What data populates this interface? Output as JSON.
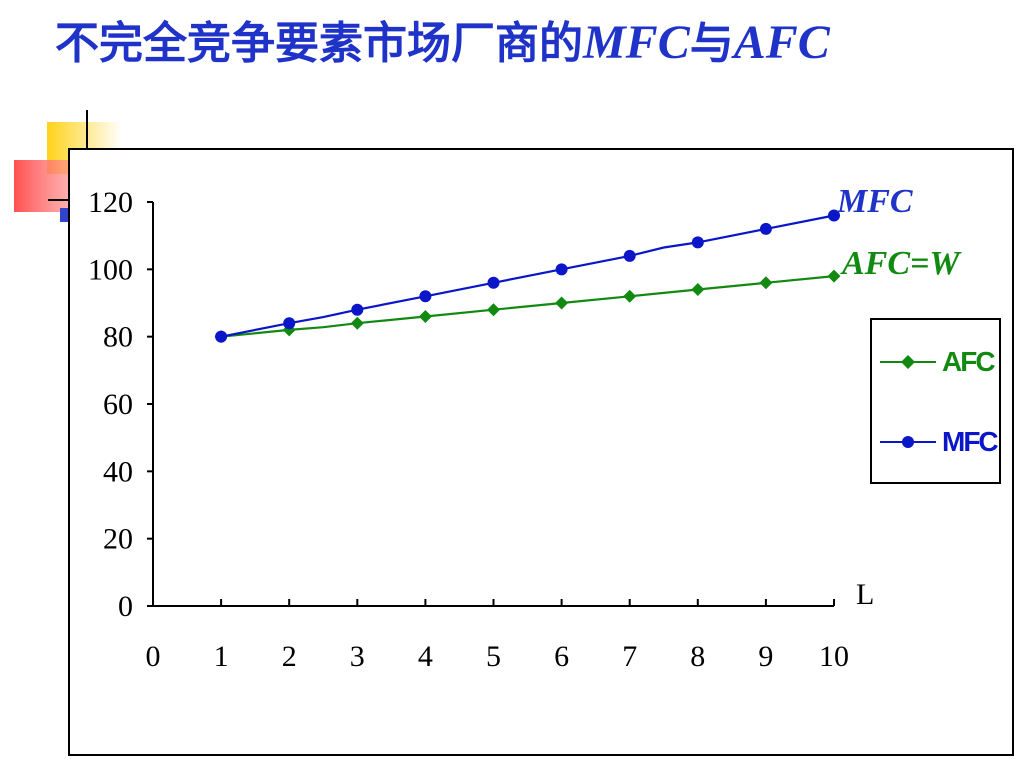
{
  "slide": {
    "title_cn": "不完全竞争要素市场厂商的",
    "title_mfc": "MFC",
    "title_mid": "与",
    "title_afc": "AFC"
  },
  "chart_data": {
    "type": "line",
    "x": [
      1,
      2,
      2.5,
      3,
      4,
      5,
      6,
      7,
      7.5,
      8,
      9,
      10
    ],
    "x_ticks": [
      "0",
      "1",
      "2",
      "3",
      "4",
      "5",
      "6",
      "7",
      "8",
      "9",
      "10"
    ],
    "y_ticks": [
      "0",
      "20",
      "40",
      "60",
      "80",
      "100",
      "120"
    ],
    "xlim": [
      0,
      10
    ],
    "ylim": [
      0,
      120
    ],
    "xlabel": "L",
    "ylabel": "",
    "grid": false,
    "legend_position": "right",
    "series": [
      {
        "name": "AFC",
        "color": "#128a12",
        "marker": "diamond",
        "x": [
          1,
          2,
          2.5,
          3,
          4,
          5,
          6,
          7,
          8,
          9,
          10
        ],
        "values": [
          80,
          82,
          82.8,
          84,
          86,
          88,
          90,
          92,
          94,
          96,
          98
        ],
        "marker_x": [
          1,
          2,
          3,
          4,
          5,
          6,
          7,
          8,
          9,
          10
        ]
      },
      {
        "name": "MFC",
        "color": "#0a16c8",
        "marker": "circle",
        "x": [
          1,
          2,
          2.5,
          3,
          4,
          5,
          6,
          7,
          7.5,
          8,
          9,
          10
        ],
        "values": [
          80,
          84,
          85.8,
          88,
          92,
          96,
          100,
          104,
          106.5,
          108,
          112,
          116
        ],
        "marker_x": [
          1,
          2,
          3,
          4,
          5,
          6,
          7,
          8,
          9,
          10
        ]
      }
    ],
    "annotations": [
      {
        "text": "MFC",
        "color": "#1f33c9"
      },
      {
        "text": "AFC=W",
        "color": "#128a12"
      }
    ]
  },
  "legend": {
    "items": [
      {
        "label": "AFC",
        "color": "#128a12",
        "marker": "diamond"
      },
      {
        "label": "MFC",
        "color": "#0a16c8",
        "marker": "circle"
      }
    ]
  },
  "colors": {
    "title": "#1f33c9",
    "deco_yellow": "#ffd21a",
    "deco_red": "#ff5050",
    "deco_blue": "#3344cc"
  }
}
